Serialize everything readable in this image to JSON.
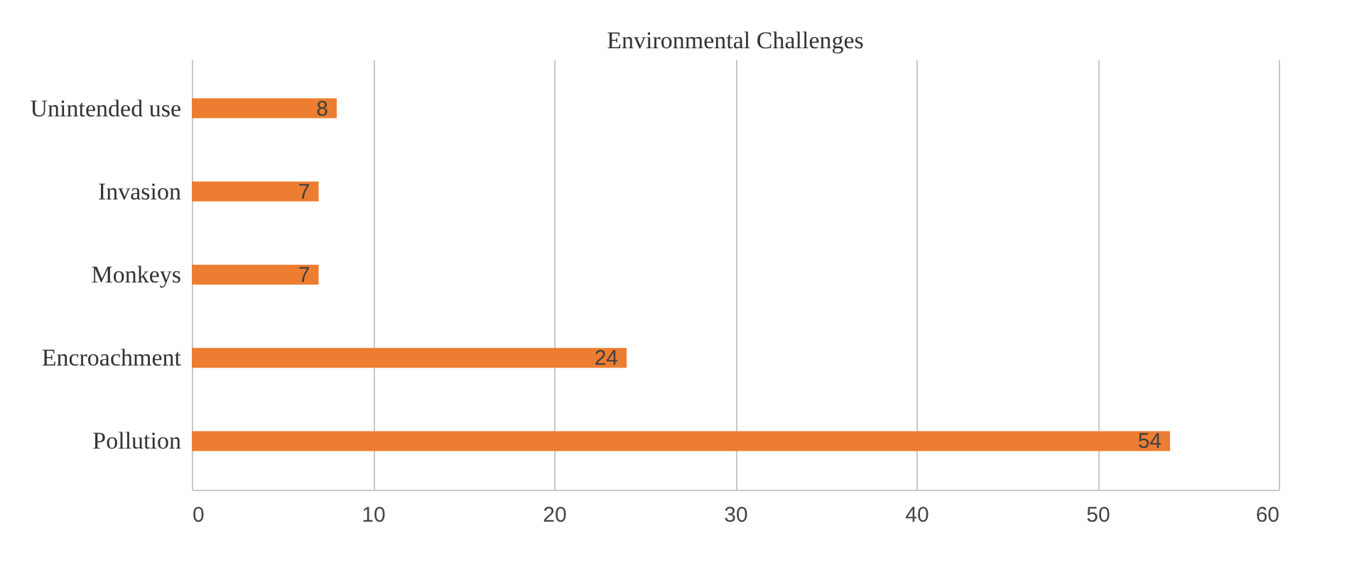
{
  "chart_data": {
    "type": "bar",
    "orientation": "horizontal",
    "title": "Environmental Challenges",
    "categories": [
      "Unintended use",
      "Invasion",
      "Monkeys",
      "Encroachment",
      "Pollution"
    ],
    "values": [
      8,
      7,
      7,
      24,
      54
    ],
    "color": "#ed7d31",
    "xlim": [
      0,
      60
    ],
    "xticks": [
      0,
      10,
      20,
      30,
      40,
      50,
      60
    ],
    "grid": "x",
    "data_labels": true
  }
}
